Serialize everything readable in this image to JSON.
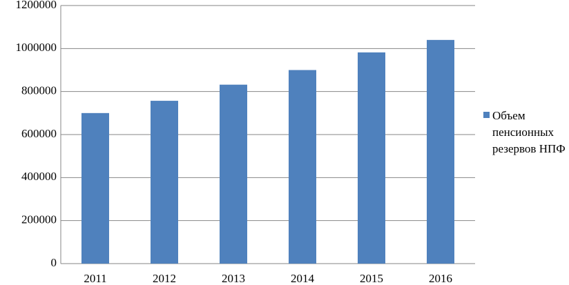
{
  "chart_data": {
    "type": "bar",
    "categories": [
      "2011",
      "2012",
      "2013",
      "2014",
      "2015",
      "2016"
    ],
    "series": [
      {
        "name": "Объем пенсионных резервов НПФ",
        "color": "#4f81bd",
        "values": [
          700000,
          757000,
          832000,
          900000,
          982000,
          1040000
        ]
      }
    ],
    "ylim": [
      0,
      1200000
    ],
    "yticks": [
      0,
      200000,
      400000,
      600000,
      800000,
      1000000,
      1200000
    ],
    "grid": true,
    "legend": "right"
  }
}
